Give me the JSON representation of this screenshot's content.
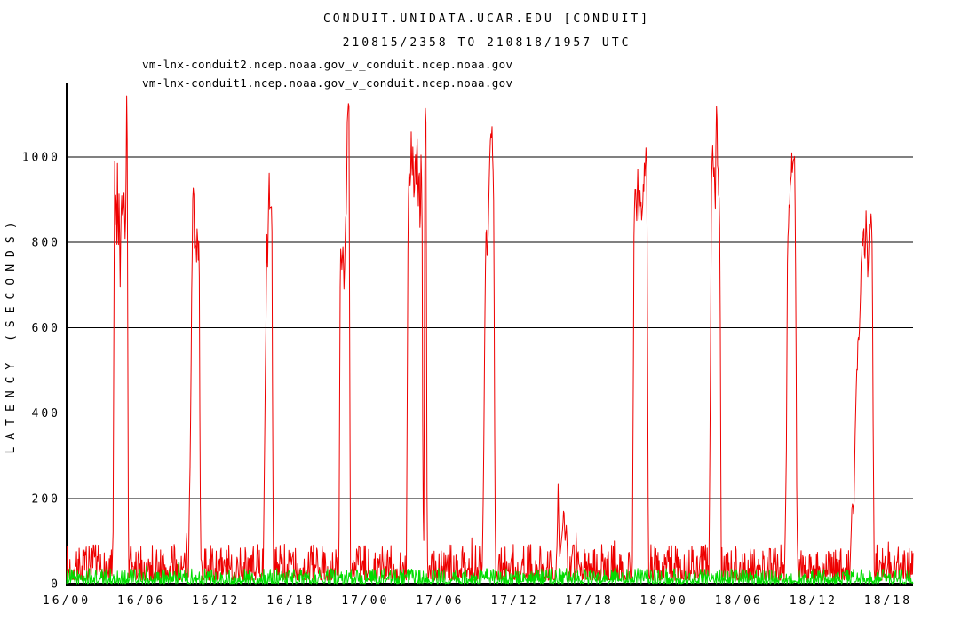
{
  "header": {
    "title": "CONDUIT.UNIDATA.UCAR.EDU [CONDUIT]",
    "subtitle": "210815/2358 TO 210818/1957 UTC"
  },
  "legend": {
    "items": [
      {
        "label": "vm-lnx-conduit2.ncep.noaa.gov_v_conduit.ncep.noaa.gov",
        "color": "#ee0000"
      },
      {
        "label": "vm-lnx-conduit1.ncep.noaa.gov_v_conduit.ncep.noaa.gov",
        "color": "#00dd00"
      }
    ]
  },
  "chart_data": {
    "type": "line",
    "title": "CONDUIT.UNIDATA.UCAR.EDU [CONDUIT]",
    "subtitle": "210815/2358 TO 210818/1957 UTC",
    "ylabel": "LATENCY (SECONDS)",
    "xlabel": "",
    "grid": "horizontal",
    "legend_position": "top-left",
    "x_axis": {
      "unit": "day/hour UTC",
      "range_hours": [
        0,
        68
      ],
      "tick_hours": [
        0,
        6,
        12,
        18,
        24,
        30,
        36,
        42,
        48,
        54,
        60,
        66
      ],
      "tick_labels": [
        "16/00",
        "16/06",
        "16/12",
        "16/18",
        "17/00",
        "17/06",
        "17/12",
        "17/18",
        "18/00",
        "18/06",
        "18/12",
        "18/18"
      ]
    },
    "y_axis": {
      "ticks": [
        0,
        200,
        400,
        600,
        800,
        1000
      ],
      "gridlines": [
        200,
        400,
        600,
        800,
        1000
      ],
      "lim": [
        0,
        1172
      ]
    },
    "series": [
      {
        "name": "vm-lnx-conduit2.ncep.noaa.gov_v_conduit.ncep.noaa.gov",
        "color": "#ee0000",
        "baseline_noise": {
          "min": 8,
          "max": 92,
          "burst_probability": 0.04,
          "burst_extra": 55
        },
        "spike_events": [
          {
            "peak_s": 1143,
            "points": [
              [
                3.72,
                60
              ],
              [
                3.8,
                600
              ],
              [
                3.85,
                1029
              ],
              [
                3.92,
                800
              ],
              [
                3.97,
                990
              ],
              [
                4.03,
                744
              ],
              [
                4.08,
                980
              ],
              [
                4.15,
                719
              ],
              [
                4.22,
                940
              ],
              [
                4.3,
                682
              ],
              [
                4.38,
                870
              ],
              [
                4.45,
                910
              ],
              [
                4.52,
                850
              ],
              [
                4.6,
                920
              ],
              [
                4.68,
                800
              ],
              [
                4.75,
                880
              ],
              [
                4.82,
                1143
              ],
              [
                4.88,
                1000
              ],
              [
                4.93,
                300
              ],
              [
                4.98,
                60
              ]
            ]
          },
          {
            "peak_s": 973,
            "points": [
              [
                9.8,
                50
              ],
              [
                9.92,
                290
              ],
              [
                10.0,
                520
              ],
              [
                10.08,
                760
              ],
              [
                10.15,
                973
              ],
              [
                10.22,
                900
              ],
              [
                10.28,
                790
              ],
              [
                10.35,
                830
              ],
              [
                10.42,
                730
              ],
              [
                10.5,
                820
              ],
              [
                10.58,
                760
              ],
              [
                10.65,
                810
              ],
              [
                10.72,
                300
              ],
              [
                10.78,
                50
              ]
            ]
          },
          {
            "peak_s": 948,
            "points": [
              [
                15.8,
                50
              ],
              [
                15.88,
                260
              ],
              [
                15.95,
                453
              ],
              [
                16.02,
                613
              ],
              [
                16.1,
                800
              ],
              [
                16.16,
                759
              ],
              [
                16.28,
                948
              ],
              [
                16.35,
                880
              ],
              [
                16.42,
                905
              ],
              [
                16.5,
                850
              ],
              [
                16.56,
                300
              ],
              [
                16.62,
                50
              ]
            ]
          },
          {
            "peak_s": 1145,
            "points": [
              [
                21.88,
                50
              ],
              [
                21.98,
                720
              ],
              [
                22.05,
                790
              ],
              [
                22.12,
                723
              ],
              [
                22.2,
                780
              ],
              [
                22.28,
                700
              ],
              [
                22.35,
                760
              ],
              [
                22.48,
                900
              ],
              [
                22.58,
                1145
              ],
              [
                22.68,
                1100
              ],
              [
                22.75,
                499
              ],
              [
                22.8,
                50
              ]
            ]
          },
          {
            "peak_s": 1175,
            "points": [
              [
                27.3,
                50
              ],
              [
                27.42,
                771
              ],
              [
                27.52,
                1020
              ],
              [
                27.6,
                930
              ],
              [
                27.68,
                1042
              ],
              [
                27.76,
                952
              ],
              [
                27.84,
                1030
              ],
              [
                27.92,
                880
              ],
              [
                28.0,
                1020
              ],
              [
                28.08,
                940
              ],
              [
                28.16,
                1040
              ],
              [
                28.24,
                900
              ],
              [
                28.32,
                1000
              ],
              [
                28.4,
                796
              ],
              [
                28.48,
                1010
              ],
              [
                28.56,
                850
              ],
              [
                28.62,
                200
              ],
              [
                28.7,
                90
              ],
              [
                28.8,
                1175
              ],
              [
                28.88,
                1060
              ],
              [
                28.94,
                250
              ],
              [
                29.0,
                50
              ]
            ]
          },
          {
            "peak_s": 1092,
            "points": [
              [
                33.4,
                50
              ],
              [
                33.52,
                318
              ],
              [
                33.62,
                700
              ],
              [
                33.72,
                842
              ],
              [
                33.8,
                738
              ],
              [
                33.95,
                950
              ],
              [
                34.05,
                1042
              ],
              [
                34.15,
                1092
              ],
              [
                34.25,
                1000
              ],
              [
                34.32,
                869
              ],
              [
                34.4,
                300
              ],
              [
                34.46,
                50
              ]
            ]
          },
          {
            "peak_s": 231,
            "points": [
              [
                39.35,
                60
              ],
              [
                39.42,
                100
              ],
              [
                39.48,
                231
              ],
              [
                39.55,
                120
              ],
              [
                39.62,
                60
              ],
              [
                39.72,
                90
              ],
              [
                39.85,
                130
              ],
              [
                39.95,
                175
              ],
              [
                40.05,
                100
              ],
              [
                40.15,
                140
              ],
              [
                40.25,
                60
              ]
            ]
          },
          {
            "peak_s": 1019,
            "points": [
              [
                45.45,
                50
              ],
              [
                45.58,
                786
              ],
              [
                45.68,
                940
              ],
              [
                45.78,
                860
              ],
              [
                45.88,
                946
              ],
              [
                45.98,
                870
              ],
              [
                46.08,
                930
              ],
              [
                46.18,
                855
              ],
              [
                46.28,
                917
              ],
              [
                46.4,
                946
              ],
              [
                46.52,
                1019
              ],
              [
                46.62,
                950
              ],
              [
                46.68,
                489
              ],
              [
                46.74,
                50
              ]
            ]
          },
          {
            "peak_s": 1135,
            "points": [
              [
                51.6,
                50
              ],
              [
                51.72,
                480
              ],
              [
                51.82,
                950
              ],
              [
                51.9,
                1008
              ],
              [
                51.98,
                920
              ],
              [
                52.05,
                980
              ],
              [
                52.12,
                900
              ],
              [
                52.2,
                1135
              ],
              [
                52.3,
                1000
              ],
              [
                52.38,
                940
              ],
              [
                52.45,
                910
              ],
              [
                52.52,
                603
              ],
              [
                52.58,
                50
              ]
            ]
          },
          {
            "peak_s": 1015,
            "points": [
              [
                57.7,
                50
              ],
              [
                57.82,
                300
              ],
              [
                57.92,
                800
              ],
              [
                58.05,
                870
              ],
              [
                58.2,
                950
              ],
              [
                58.35,
                1015
              ],
              [
                58.48,
                1000
              ],
              [
                58.58,
                720
              ],
              [
                58.66,
                200
              ],
              [
                58.72,
                50
              ]
            ]
          },
          {
            "peak_s": 865,
            "points": [
              [
                62.95,
                50
              ],
              [
                63.1,
                180
              ],
              [
                63.25,
                170
              ],
              [
                63.4,
                420
              ],
              [
                63.55,
                540
              ],
              [
                63.7,
                620
              ],
              [
                63.85,
                750
              ],
              [
                64.0,
                820
              ],
              [
                64.12,
                780
              ],
              [
                64.25,
                860
              ],
              [
                64.38,
                700
              ],
              [
                64.5,
                830
              ],
              [
                64.62,
                865
              ],
              [
                64.72,
                800
              ],
              [
                64.8,
                350
              ],
              [
                64.88,
                50
              ]
            ]
          }
        ]
      },
      {
        "name": "vm-lnx-conduit1.ncep.noaa.gov_v_conduit.ncep.noaa.gov",
        "color": "#00dd00",
        "baseline_noise": {
          "min": 0,
          "max": 36,
          "burst_probability": 0.03,
          "burst_extra": 16
        },
        "spike_events": []
      }
    ]
  }
}
